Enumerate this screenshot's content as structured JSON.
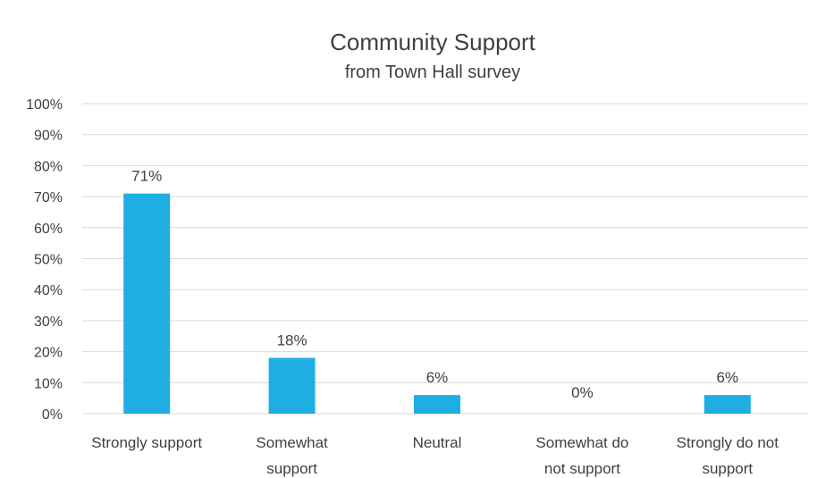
{
  "chart_data": {
    "type": "bar",
    "title": "Community Support",
    "subtitle": "from Town Hall survey",
    "xlabel": "",
    "ylabel": "",
    "categories": [
      [
        "Strongly support"
      ],
      [
        "Somewhat",
        "support"
      ],
      [
        "Neutral"
      ],
      [
        "Somewhat do",
        "not support"
      ],
      [
        "Strongly do not",
        "support"
      ]
    ],
    "values": [
      71,
      18,
      6,
      0,
      6
    ],
    "data_labels": [
      "71%",
      "18%",
      "6%",
      "0%",
      "6%"
    ],
    "ylim": [
      0,
      100
    ],
    "yticks": [
      "0%",
      "10%",
      "20%",
      "30%",
      "40%",
      "50%",
      "60%",
      "70%",
      "80%",
      "90%",
      "100%"
    ],
    "grid": true,
    "legend": "none",
    "bar_color": "#1eaee4"
  }
}
